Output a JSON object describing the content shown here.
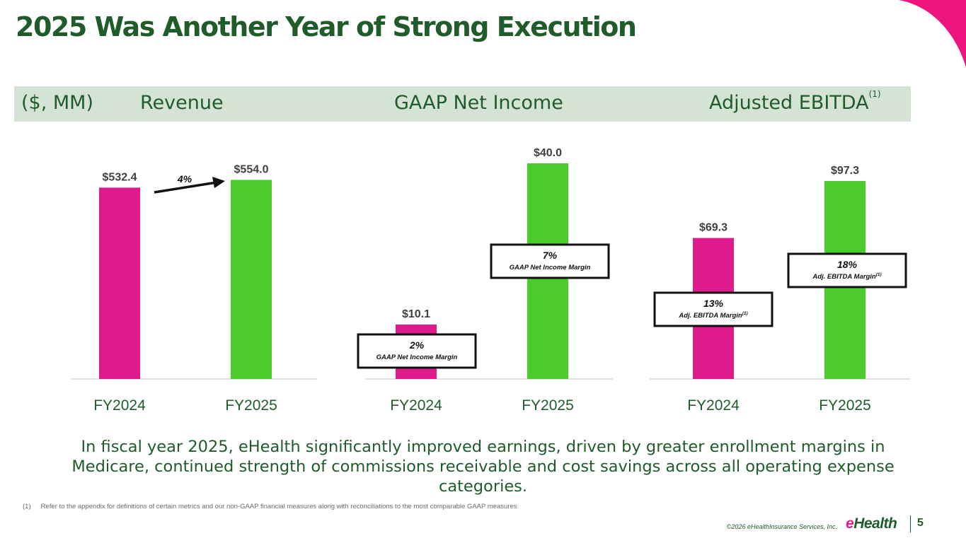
{
  "title": "2025 Was Another Year of Strong Execution",
  "colors": {
    "fy2024": "#de1b8c",
    "fy2025": "#4ccb2e",
    "dark_green": "#1f5c2a",
    "band": "#d5e3d5",
    "accent_pink": "#f0147f"
  },
  "header": {
    "units": "($, MM)",
    "revenue": "Revenue",
    "net_income": "GAAP Net Income",
    "ebitda": "Adjusted EBITDA",
    "ebitda_note": "(1)"
  },
  "chart_data": [
    {
      "type": "bar",
      "title": "Revenue",
      "categories": [
        "FY2024",
        "FY2025"
      ],
      "values": [
        532.4,
        554.0
      ],
      "value_labels": [
        "$532.4",
        "$554.0"
      ],
      "ylim": [
        0,
        600
      ],
      "annotations": {
        "growth": "4%"
      }
    },
    {
      "type": "bar",
      "title": "GAAP Net Income",
      "categories": [
        "FY2024",
        "FY2025"
      ],
      "values": [
        10.1,
        40.0
      ],
      "value_labels": [
        "$10.1",
        "$40.0"
      ],
      "ylim": [
        0,
        40.0
      ],
      "annotations": {
        "margins": [
          {
            "pct": "2%",
            "label": "GAAP Net Income Margin",
            "sup": ""
          },
          {
            "pct": "7%",
            "label": "GAAP Net Income Margin",
            "sup": ""
          }
        ]
      }
    },
    {
      "type": "bar",
      "title": "Adjusted EBITDA",
      "categories": [
        "FY2024",
        "FY2025"
      ],
      "values": [
        69.3,
        97.3
      ],
      "value_labels": [
        "$69.3",
        "$97.3"
      ],
      "ylim": [
        0,
        106
      ],
      "annotations": {
        "margins": [
          {
            "pct": "13%",
            "label": "Adj. EBITDA Margin",
            "sup": "(1)"
          },
          {
            "pct": "18%",
            "label": "Adj. EBITDA Margin",
            "sup": "(1)"
          }
        ]
      }
    }
  ],
  "summary": "In fiscal year 2025, eHealth significantly improved earnings, driven by greater enrollment margins in Medicare, continued strength of commissions receivable and cost savings across all operating expense categories.",
  "footnote": {
    "mark": "(1)",
    "text": "Refer to the appendix for definitions of certain metrics and our non-GAAP financial measures along with reconciliations to the most comparable GAAP measures."
  },
  "footer": {
    "copyright": "©2026 eHealthInsurance Services, Inc.",
    "logo_e": "e",
    "logo_rest": "Health",
    "page": "5"
  }
}
